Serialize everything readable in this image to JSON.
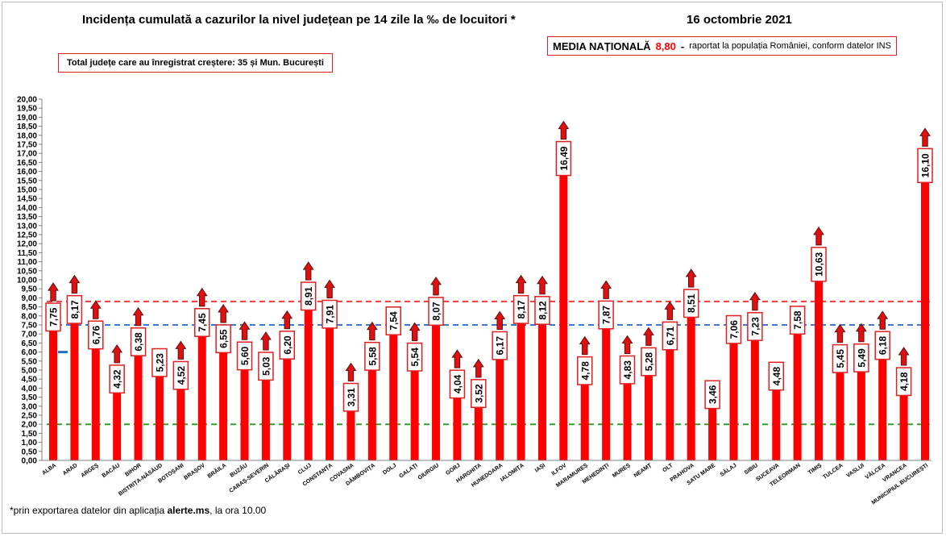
{
  "header": {
    "title": "Incidența cumulată a cazurilor la nivel județean pe 14 zile la ‰ de locuitori *",
    "date": "16 octombrie 2021"
  },
  "national_box": {
    "label": "MEDIA NAȚIONALĂ",
    "value": "8,80",
    "dash": "-",
    "note": "raportat la populația României, conform datelor INS"
  },
  "counties_box": {
    "text": "Total județe care au înregistrat creștere:  35 și Mun. București"
  },
  "footnote": {
    "prefix": "*prin exportarea datelor din aplicația ",
    "app": "alerte.ms",
    "suffix": ", la ora 10.00"
  },
  "colors": {
    "bar": "#ff0000",
    "arrow": "#e01010",
    "arrow_outline": "#5a1010",
    "label_border": "#e02020",
    "national_line": "#ef3b3b",
    "blue_line": "#3a78c9",
    "green_line": "#2ca02c",
    "small_marker": "#1f6fd0"
  },
  "chart_data": {
    "type": "bar",
    "ylim": [
      0,
      20
    ],
    "ytick_step": 0.5,
    "yticks": [
      "0,00",
      "0,50",
      "1,00",
      "1,50",
      "2,00",
      "2,50",
      "3,00",
      "3,50",
      "4,00",
      "4,50",
      "5,00",
      "5,50",
      "6,00",
      "6,50",
      "7,00",
      "7,50",
      "8,00",
      "8,50",
      "9,00",
      "9,50",
      "10,00",
      "10,50",
      "11,00",
      "11,50",
      "12,00",
      "12,50",
      "13,00",
      "13,50",
      "14,00",
      "14,50",
      "15,00",
      "15,50",
      "16,00",
      "16,50",
      "17,00",
      "17,50",
      "18,00",
      "18,50",
      "19,00",
      "19,50",
      "20,00"
    ],
    "categories": [
      "ALBA",
      "ARAD",
      "ARGEȘ",
      "BACĂU",
      "BIHOR",
      "BISTRIȚA-NĂSĂUD",
      "BOTOȘANI",
      "BRAȘOV",
      "BRĂILA",
      "BUZĂU",
      "CARAȘ-SEVERIN",
      "CĂLĂRAȘI",
      "CLUJ",
      "CONSTANȚA",
      "COVASNA",
      "DÂMBOVIȚA",
      "DOLJ",
      "GALAȚI",
      "GIURGIU",
      "GORJ",
      "HARGHITA",
      "HUNEDOARA",
      "IALOMIȚA",
      "IAȘI",
      "ILFOV",
      "MARAMUREȘ",
      "MEHEDINȚI",
      "MUREȘ",
      "NEAMȚ",
      "OLT",
      "PRAHOVA",
      "SATU MARE",
      "SĂLAJ",
      "SIBIU",
      "SUCEAVA",
      "TELEORMAN",
      "TIMIȘ",
      "TULCEA",
      "VASLUI",
      "VÂLCEA",
      "VRANCEA",
      "MUNICIPIUL BUCUREȘTI"
    ],
    "values": [
      7.75,
      8.17,
      6.76,
      4.32,
      6.38,
      5.23,
      4.52,
      7.45,
      6.55,
      5.6,
      5.03,
      6.2,
      8.91,
      7.91,
      3.31,
      5.58,
      7.54,
      5.54,
      8.07,
      4.04,
      3.52,
      6.17,
      8.17,
      8.12,
      16.49,
      4.78,
      7.87,
      4.83,
      5.28,
      6.71,
      8.51,
      3.46,
      7.06,
      7.23,
      4.48,
      7.58,
      10.63,
      5.45,
      5.49,
      6.18,
      4.18,
      16.1
    ],
    "value_labels": [
      "7,75",
      "8,17",
      "6,76",
      "4,32",
      "6,38",
      "5,23",
      "4,52",
      "7,45",
      "6,55",
      "5,60",
      "5,03",
      "6,20",
      "8,91",
      "7,91",
      "3,31",
      "5,58",
      "7,54",
      "5,54",
      "8,07",
      "4,04",
      "3,52",
      "6,17",
      "8,17",
      "8,12",
      "16,49",
      "4,78",
      "7,87",
      "4,83",
      "5,28",
      "6,71",
      "8,51",
      "3,46",
      "7,06",
      "7,23",
      "4,48",
      "7,58",
      "10,63",
      "5,45",
      "5,49",
      "6,18",
      "4,18",
      "16,10"
    ],
    "increase": [
      true,
      true,
      true,
      true,
      true,
      false,
      true,
      true,
      true,
      true,
      true,
      true,
      true,
      true,
      true,
      true,
      false,
      true,
      true,
      true,
      true,
      true,
      true,
      true,
      true,
      true,
      true,
      true,
      true,
      true,
      true,
      false,
      false,
      true,
      false,
      false,
      true,
      true,
      true,
      true,
      true,
      true
    ],
    "reference_lines": [
      {
        "value": 8.8,
        "style": "dashed",
        "color": "#ef3b3b"
      },
      {
        "value": 7.5,
        "style": "dashed",
        "color": "#3a78c9"
      },
      {
        "value": 2.0,
        "style": "dashed",
        "color": "#2ca02c"
      }
    ],
    "marker_value": 6.0,
    "grid": false,
    "legend": "none"
  }
}
